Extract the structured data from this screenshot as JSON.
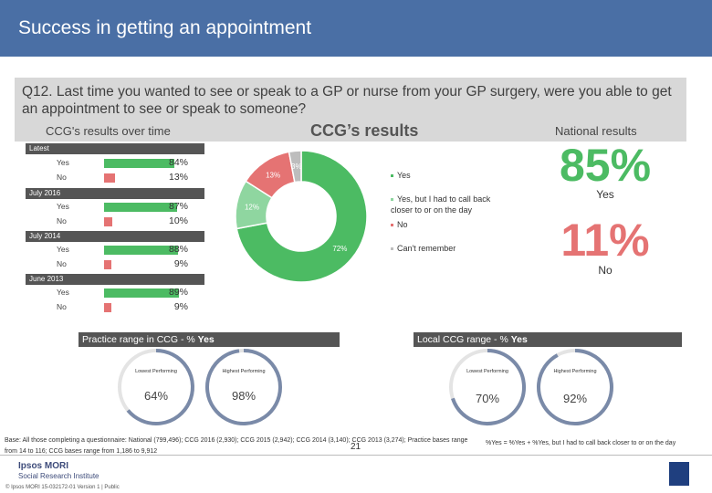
{
  "title": "Success in getting an appointment",
  "question": "Q12. Last time you wanted to see or speak to a GP or nurse from your GP surgery, were you able to get an appointment to see or speak to someone?",
  "over_time_heading": "CCG's results over time",
  "ccg_heading": "CCG’s results",
  "national_heading": "National results",
  "colors": {
    "header": "#4a6fa5",
    "green": "#4cbb63",
    "light_green": "#8fd6a0",
    "red": "#e57373",
    "grey": "#bdbdbd",
    "dark": "#555555"
  },
  "chart_data": [
    {
      "type": "bar",
      "title": "CCG's results over time",
      "series": [
        {
          "name": "Latest",
          "yes": 84,
          "no": 13
        },
        {
          "name": "July 2016",
          "yes": 87,
          "no": 10
        },
        {
          "name": "July 2014",
          "yes": 88,
          "no": 9
        },
        {
          "name": "June 2013",
          "yes": 89,
          "no": 9
        }
      ],
      "row_labels": [
        "Yes",
        "No"
      ],
      "value_labels": {
        "latest": [
          "84%",
          "13%"
        ],
        "july2016": [
          "87%",
          "10%"
        ],
        "july2014": [
          "88%",
          "9%"
        ],
        "june2013": [
          "89%",
          "9%"
        ]
      }
    },
    {
      "type": "pie",
      "title": "CCG’s results",
      "slices": [
        {
          "label": "Yes",
          "value": 72,
          "text": "72%"
        },
        {
          "label": "Yes, but I had to call back closer to or on the day",
          "value": 12,
          "text": "12%"
        },
        {
          "label": "No",
          "value": 13,
          "text": "13%"
        },
        {
          "label": "Can't remember",
          "value": 3,
          "text": "3%"
        }
      ]
    }
  ],
  "national": {
    "yes_value": "85%",
    "yes_label": "Yes",
    "no_value": "11%",
    "no_label": "No"
  },
  "practice_range": {
    "title_prefix": "Practice range in CCG - % ",
    "title_bold": "Yes",
    "lowest_label": "Lowest Performing",
    "highest_label": "Highest Performing",
    "lowest_value": "64%",
    "highest_value": "98%",
    "lowest_num": 64,
    "highest_num": 98
  },
  "local_range": {
    "title_prefix": "Local CCG range - % ",
    "title_bold": "Yes",
    "lowest_label": "Lowest Performing",
    "highest_label": "Highest Performing",
    "lowest_value": "70%",
    "highest_value": "92%",
    "lowest_num": 70,
    "highest_num": 92
  },
  "base_text": "Base: All those completing a questionnaire: National (799,496); CCG 2016 (2,930); CCG 2015 (2,942); CCG 2014 (3,140); CCG 2013 (3,274); Practice bases range from 14 to 116; CCG bases range from 1,186 to 9,912",
  "note_text": "%Yes = %Yes + %Yes, but I had to call back closer to or on the day",
  "page_number": "21",
  "footer_brand_1": "Ipsos MORI",
  "footer_brand_2": "Social Research Institute",
  "footer_copy": "© Ipsos MORI     15-032172-01 Version 1 | Public"
}
